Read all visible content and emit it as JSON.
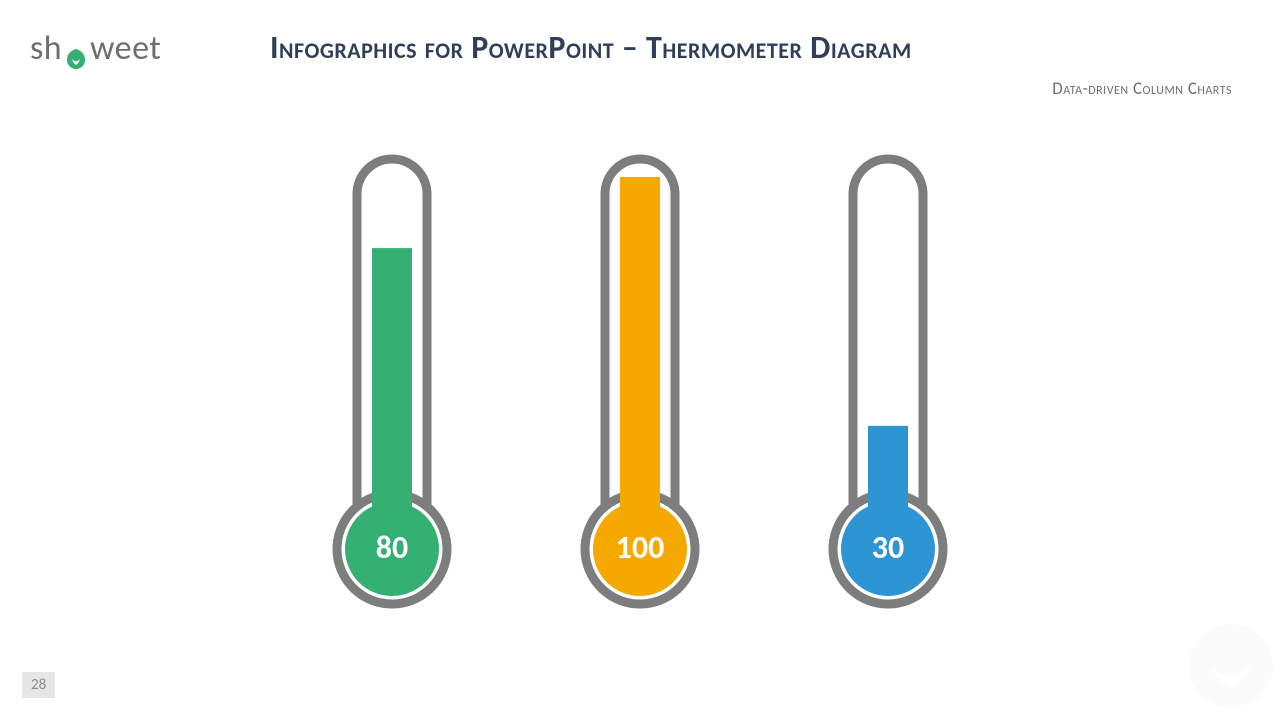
{
  "logo": {
    "prefix": "sh",
    "suffix": "weet",
    "text_color": "#6e6e6e",
    "leaf_color": "#33b072"
  },
  "header": {
    "title": "Infographics for PowerPoint – Thermometer Diagram",
    "subtitle": "Data-driven Column Charts",
    "title_color": "#2f3f59",
    "subtitle_color": "#6e6e6e"
  },
  "page_number": "28",
  "chart": {
    "type": "thermometer-infographic",
    "background_color": "#ffffff",
    "outline_color": "#7d7d7d",
    "outline_width": 9,
    "tube_width": 70,
    "tube_height": 370,
    "bulb_radius": 55,
    "fill_width": 40,
    "value_font_size": 32,
    "value_font_weight": 700,
    "value_color": "#ffffff",
    "max_value": 100,
    "thermometers": [
      {
        "value": 80,
        "fill_color": "#33b072",
        "display": "80"
      },
      {
        "value": 100,
        "fill_color": "#f5a800",
        "display": "100"
      },
      {
        "value": 30,
        "fill_color": "#2d95d3",
        "display": "30"
      }
    ]
  }
}
